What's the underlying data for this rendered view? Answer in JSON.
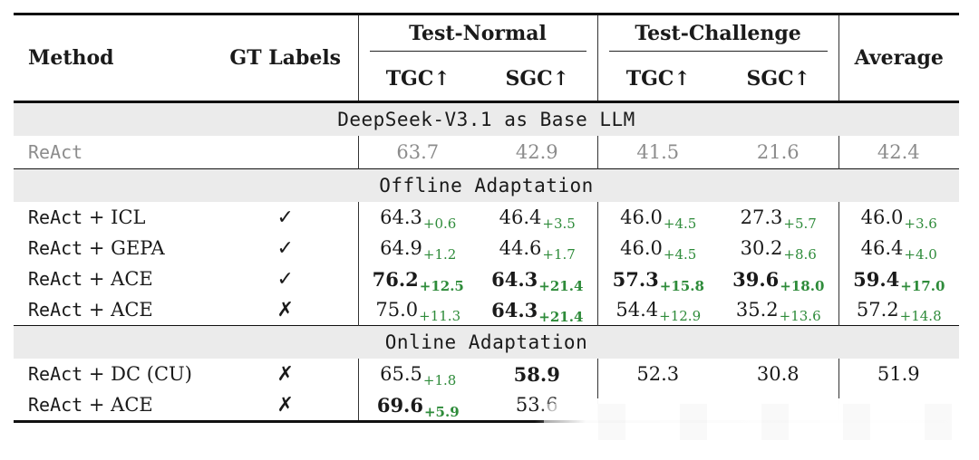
{
  "header": {
    "method": "Method",
    "gt_labels": "GT Labels",
    "test_normal": "Test-Normal",
    "test_challenge": "Test-Challenge",
    "average": "Average",
    "tgc": "TGC↑",
    "sgc": "SGC↑"
  },
  "sections": [
    {
      "label": "DeepSeek-V3.1 as Base LLM",
      "rows": [
        {
          "method_mono": "ReAct",
          "method_serif": "",
          "gt": "",
          "cells": [
            {
              "v": "63.7",
              "d": "",
              "b": false
            },
            {
              "v": "42.9",
              "d": "",
              "b": false
            },
            {
              "v": "41.5",
              "d": "",
              "b": false
            },
            {
              "v": "21.6",
              "d": "",
              "b": false
            },
            {
              "v": "42.4",
              "d": "",
              "b": false
            }
          ]
        }
      ]
    },
    {
      "label": "Offline Adaptation",
      "rows": [
        {
          "method_mono": "ReAct",
          "method_serif": " + ICL",
          "gt": "✓",
          "cells": [
            {
              "v": "64.3",
              "d": "+0.6",
              "b": false
            },
            {
              "v": "46.4",
              "d": "+3.5",
              "b": false
            },
            {
              "v": "46.0",
              "d": "+4.5",
              "b": false
            },
            {
              "v": "27.3",
              "d": "+5.7",
              "b": false
            },
            {
              "v": "46.0",
              "d": "+3.6",
              "b": false
            }
          ]
        },
        {
          "method_mono": "ReAct",
          "method_serif": " + GEPA",
          "gt": "✓",
          "cells": [
            {
              "v": "64.9",
              "d": "+1.2",
              "b": false
            },
            {
              "v": "44.6",
              "d": "+1.7",
              "b": false
            },
            {
              "v": "46.0",
              "d": "+4.5",
              "b": false
            },
            {
              "v": "30.2",
              "d": "+8.6",
              "b": false
            },
            {
              "v": "46.4",
              "d": "+4.0",
              "b": false
            }
          ]
        },
        {
          "method_mono": "ReAct",
          "method_serif": " + ACE",
          "gt": "✓",
          "cells": [
            {
              "v": "76.2",
              "d": "+12.5",
              "b": true
            },
            {
              "v": "64.3",
              "d": "+21.4",
              "b": true
            },
            {
              "v": "57.3",
              "d": "+15.8",
              "b": true
            },
            {
              "v": "39.6",
              "d": "+18.0",
              "b": true
            },
            {
              "v": "59.4",
              "d": "+17.0",
              "b": true
            }
          ]
        },
        {
          "method_mono": "ReAct",
          "method_serif": " + ACE",
          "gt": "✗",
          "cells": [
            {
              "v": "75.0",
              "d": "+11.3",
              "b": false
            },
            {
              "v": "64.3",
              "d": "+21.4",
              "b": true
            },
            {
              "v": "54.4",
              "d": "+12.9",
              "b": false
            },
            {
              "v": "35.2",
              "d": "+13.6",
              "b": false
            },
            {
              "v": "57.2",
              "d": "+14.8",
              "b": false
            }
          ]
        }
      ]
    },
    {
      "label": "Online Adaptation",
      "rows": [
        {
          "method_mono": "ReAct",
          "method_serif": " + DC (CU)",
          "gt": "✗",
          "cells": [
            {
              "v": "65.5",
              "d": "+1.8",
              "b": false
            },
            {
              "v": "58.9",
              "d": "",
              "b": true
            },
            {
              "v": "52.3",
              "d": "",
              "b": false
            },
            {
              "v": "30.8",
              "d": "",
              "b": false
            },
            {
              "v": "51.9",
              "d": "",
              "b": false
            }
          ]
        },
        {
          "method_mono": "ReAct",
          "method_serif": " + ACE",
          "gt": "✗",
          "cells": [
            {
              "v": "69.6",
              "d": "+5.9",
              "b": true
            },
            {
              "v": "53.6",
              "d": "",
              "b": false
            },
            {
              "v": "",
              "d": "",
              "b": false
            },
            {
              "v": "",
              "d": "",
              "b": false
            },
            {
              "v": "",
              "d": "",
              "b": false
            }
          ]
        }
      ]
    }
  ]
}
